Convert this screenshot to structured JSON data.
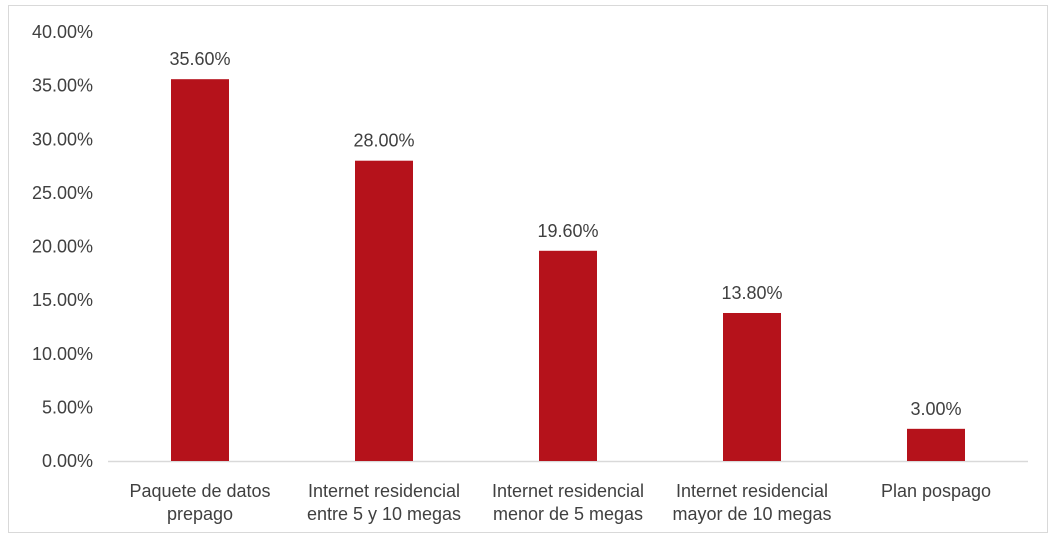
{
  "chart_data": {
    "type": "bar",
    "categories": [
      [
        "Paquete de datos",
        "prepago"
      ],
      [
        "Internet residencial",
        "entre 5 y 10 megas"
      ],
      [
        "Internet residencial",
        "menor de 5 megas"
      ],
      [
        "Internet residencial",
        "mayor de 10 megas"
      ],
      [
        "Plan pospago"
      ]
    ],
    "values": [
      35.6,
      28.0,
      19.6,
      13.8,
      3.0
    ],
    "data_labels": [
      "35.60%",
      "28.00%",
      "19.60%",
      "13.80%",
      "3.00%"
    ],
    "y_ticks": [
      "0.00%",
      "5.00%",
      "10.00%",
      "15.00%",
      "20.00%",
      "25.00%",
      "30.00%",
      "35.00%",
      "40.00%"
    ],
    "ylim": [
      0,
      40
    ],
    "grid": false,
    "legend": "none",
    "bar_color": "#b5121b",
    "axis_color": "#d9d9d9",
    "text_color": "#404040"
  }
}
